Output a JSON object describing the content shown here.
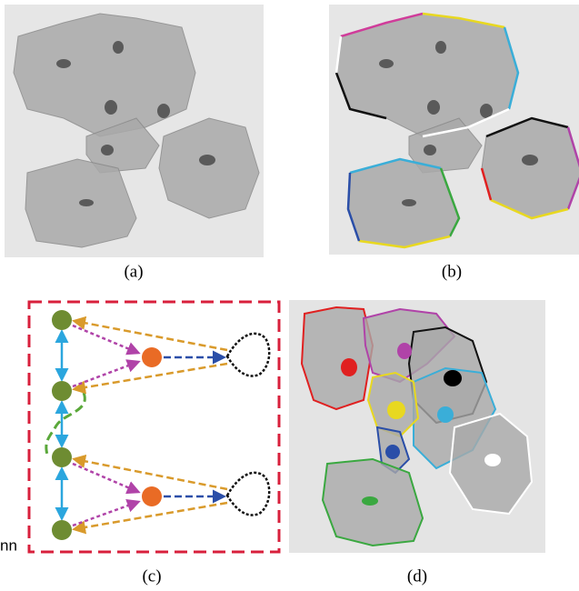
{
  "panels": [
    {
      "label": "(a)"
    },
    {
      "label": "(b)"
    },
    {
      "label": "(c)",
      "corner_text": "nn"
    },
    {
      "label": "(d)"
    }
  ]
}
